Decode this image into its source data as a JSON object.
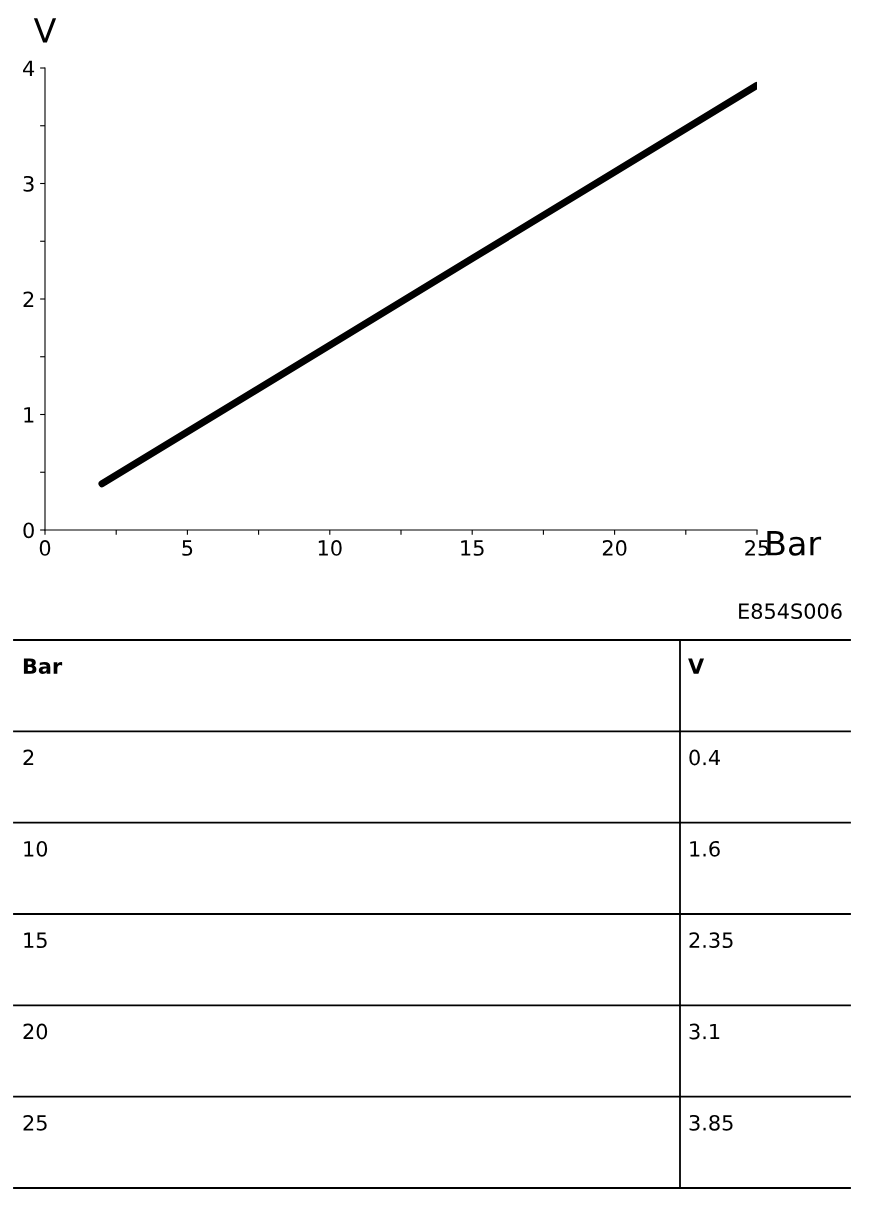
{
  "chart_data": {
    "type": "line",
    "xlabel": "Bar",
    "ylabel": "V",
    "x": [
      2,
      10,
      15,
      20,
      25
    ],
    "series": [
      {
        "color": "#000000",
        "values": [
          0.4,
          1.6,
          2.35,
          3.1,
          3.85
        ]
      }
    ],
    "xlim": [
      0,
      25
    ],
    "ylim": [
      0,
      4
    ],
    "xticks": [
      0,
      {
        "value": 2.5,
        "label": null
      },
      5,
      {
        "value": 7.5,
        "label": null
      },
      10,
      {
        "value": 12.5,
        "label": null
      },
      15,
      {
        "value": 17.5,
        "label": null
      },
      20,
      {
        "value": 22.5,
        "label": null
      },
      25
    ],
    "yticks": [
      0,
      {
        "value": 0.5,
        "label": null
      },
      1,
      {
        "value": 1.5,
        "label": null
      },
      2,
      {
        "value": 2.5,
        "label": null
      },
      3,
      {
        "value": 3.5,
        "label": null
      },
      4
    ],
    "grid": false,
    "marker": "none",
    "line_style": "solid",
    "annotations": [
      "E854S006",
      "2",
      "0.4",
      "10",
      "1.6",
      "15",
      "2.35",
      "20",
      "3.1",
      "25",
      "3.85"
    ]
  }
}
